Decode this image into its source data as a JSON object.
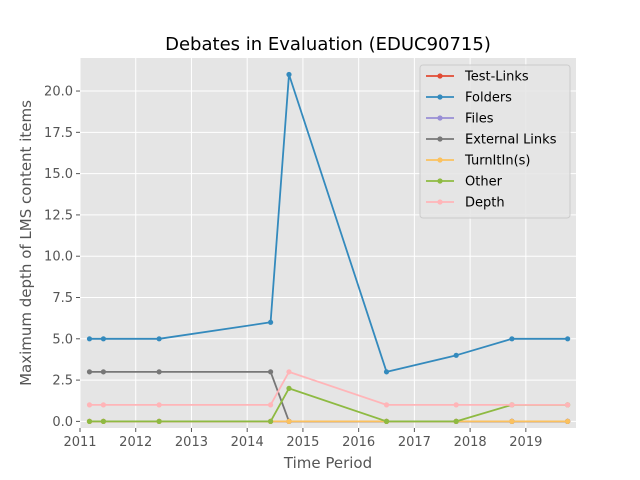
{
  "chart_data": {
    "type": "line",
    "title": "Debates in Evaluation (EDUC90715)",
    "xlabel": "Time Period",
    "ylabel": "Maximum depth of LMS content items",
    "xlim": [
      2011.0,
      2019.9
    ],
    "ylim": [
      -0.4,
      22.0
    ],
    "xticks": [
      2011,
      2012,
      2013,
      2014,
      2015,
      2016,
      2017,
      2018,
      2019
    ],
    "xtick_labels": [
      "2011",
      "2012",
      "2013",
      "2014",
      "2015",
      "2016",
      "2017",
      "2018",
      "2019"
    ],
    "yticks": [
      0.0,
      2.5,
      5.0,
      7.5,
      10.0,
      12.5,
      15.0,
      17.5,
      20.0
    ],
    "ytick_labels": [
      "0.0",
      "2.5",
      "5.0",
      "7.5",
      "10.0",
      "12.5",
      "15.0",
      "17.5",
      "20.0"
    ],
    "grid": true,
    "legend_position": "top-right",
    "x": [
      2011.17,
      2011.42,
      2012.42,
      2014.42,
      2014.75,
      2016.5,
      2017.75,
      2018.75,
      2019.75
    ],
    "series": [
      {
        "name": "Test-Links",
        "color": "#e24a33",
        "values": [
          0,
          0,
          0,
          0,
          0,
          0,
          0,
          0,
          0
        ]
      },
      {
        "name": "Folders",
        "color": "#348abd",
        "values": [
          5,
          5,
          5,
          6,
          21,
          3,
          4,
          5,
          5
        ]
      },
      {
        "name": "Files",
        "color": "#988ed5",
        "values": [
          0,
          0,
          0,
          0,
          0,
          0,
          0,
          0,
          0
        ]
      },
      {
        "name": "External Links",
        "color": "#777777",
        "values": [
          3,
          3,
          3,
          3,
          0,
          0,
          0,
          0,
          0
        ]
      },
      {
        "name": "TurnItIn(s)",
        "color": "#fbc15e",
        "values": [
          0,
          0,
          0,
          0,
          0,
          0,
          0,
          0,
          0
        ]
      },
      {
        "name": "Other",
        "color": "#8eba42",
        "values": [
          0,
          0,
          0,
          0,
          2,
          0,
          0,
          1,
          1
        ]
      },
      {
        "name": "Depth",
        "color": "#ffb5b8",
        "values": [
          1,
          1,
          1,
          1,
          3,
          1,
          1,
          1,
          1
        ]
      }
    ]
  }
}
